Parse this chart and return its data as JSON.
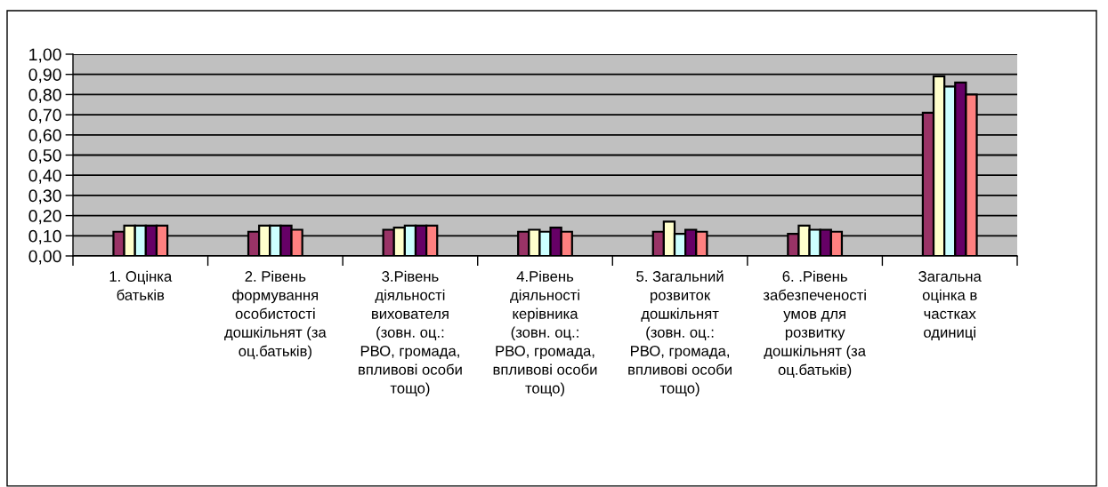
{
  "chart_data": {
    "type": "bar",
    "categories": [
      "1. Оцінка\nбатьків",
      "2. Рівень\nформування\nособистості\nдошкільнят (за\nоц.батьків)",
      "3.Рівень\nдіяльності\nвихователя\n(зовн. оц.:\nРВО, громада,\nвпливові особи\nтощо)",
      "4.Рівень\nдіяльності\nкерівника\n(зовн. оц.:\nРВО, громада,\nвпливові особи\nтощо)",
      "5. Загальний\nрозвиток\nдошкільнят\n(зовн. оц.:\nРВО, громада,\nвпливові особи\nтощо)",
      "6. .Рівень\nзабезпеченості\nумов для\nрозвитку\nдошкільнят (за\nоц.батьків)",
      "Загальна\nоцінка в\nчастках\nодиниці"
    ],
    "series": [
      {
        "color": "#993366",
        "values": [
          0.12,
          0.12,
          0.13,
          0.12,
          0.12,
          0.11,
          0.71
        ]
      },
      {
        "color": "#ffffcc",
        "values": [
          0.15,
          0.15,
          0.14,
          0.13,
          0.17,
          0.15,
          0.89
        ]
      },
      {
        "color": "#ccffff",
        "values": [
          0.15,
          0.15,
          0.15,
          0.12,
          0.11,
          0.13,
          0.84
        ]
      },
      {
        "color": "#660066",
        "values": [
          0.15,
          0.15,
          0.15,
          0.14,
          0.13,
          0.13,
          0.86
        ]
      },
      {
        "color": "#ff8080",
        "values": [
          0.15,
          0.13,
          0.15,
          0.12,
          0.12,
          0.12,
          0.8
        ]
      }
    ],
    "ylim": [
      0,
      1
    ],
    "yticks": [
      {
        "value": 0,
        "label": "0,00"
      },
      {
        "value": 0.1,
        "label": "0,10"
      },
      {
        "value": 0.2,
        "label": "0,20"
      },
      {
        "value": 0.3,
        "label": "0,30"
      },
      {
        "value": 0.4,
        "label": "0,40"
      },
      {
        "value": 0.5,
        "label": "0,50"
      },
      {
        "value": 0.6,
        "label": "0,60"
      },
      {
        "value": 0.7,
        "label": "0,70"
      },
      {
        "value": 0.8,
        "label": "0,80"
      },
      {
        "value": 0.9,
        "label": "0,90"
      },
      {
        "value": 1.0,
        "label": "1,00"
      }
    ],
    "grid": "y"
  }
}
